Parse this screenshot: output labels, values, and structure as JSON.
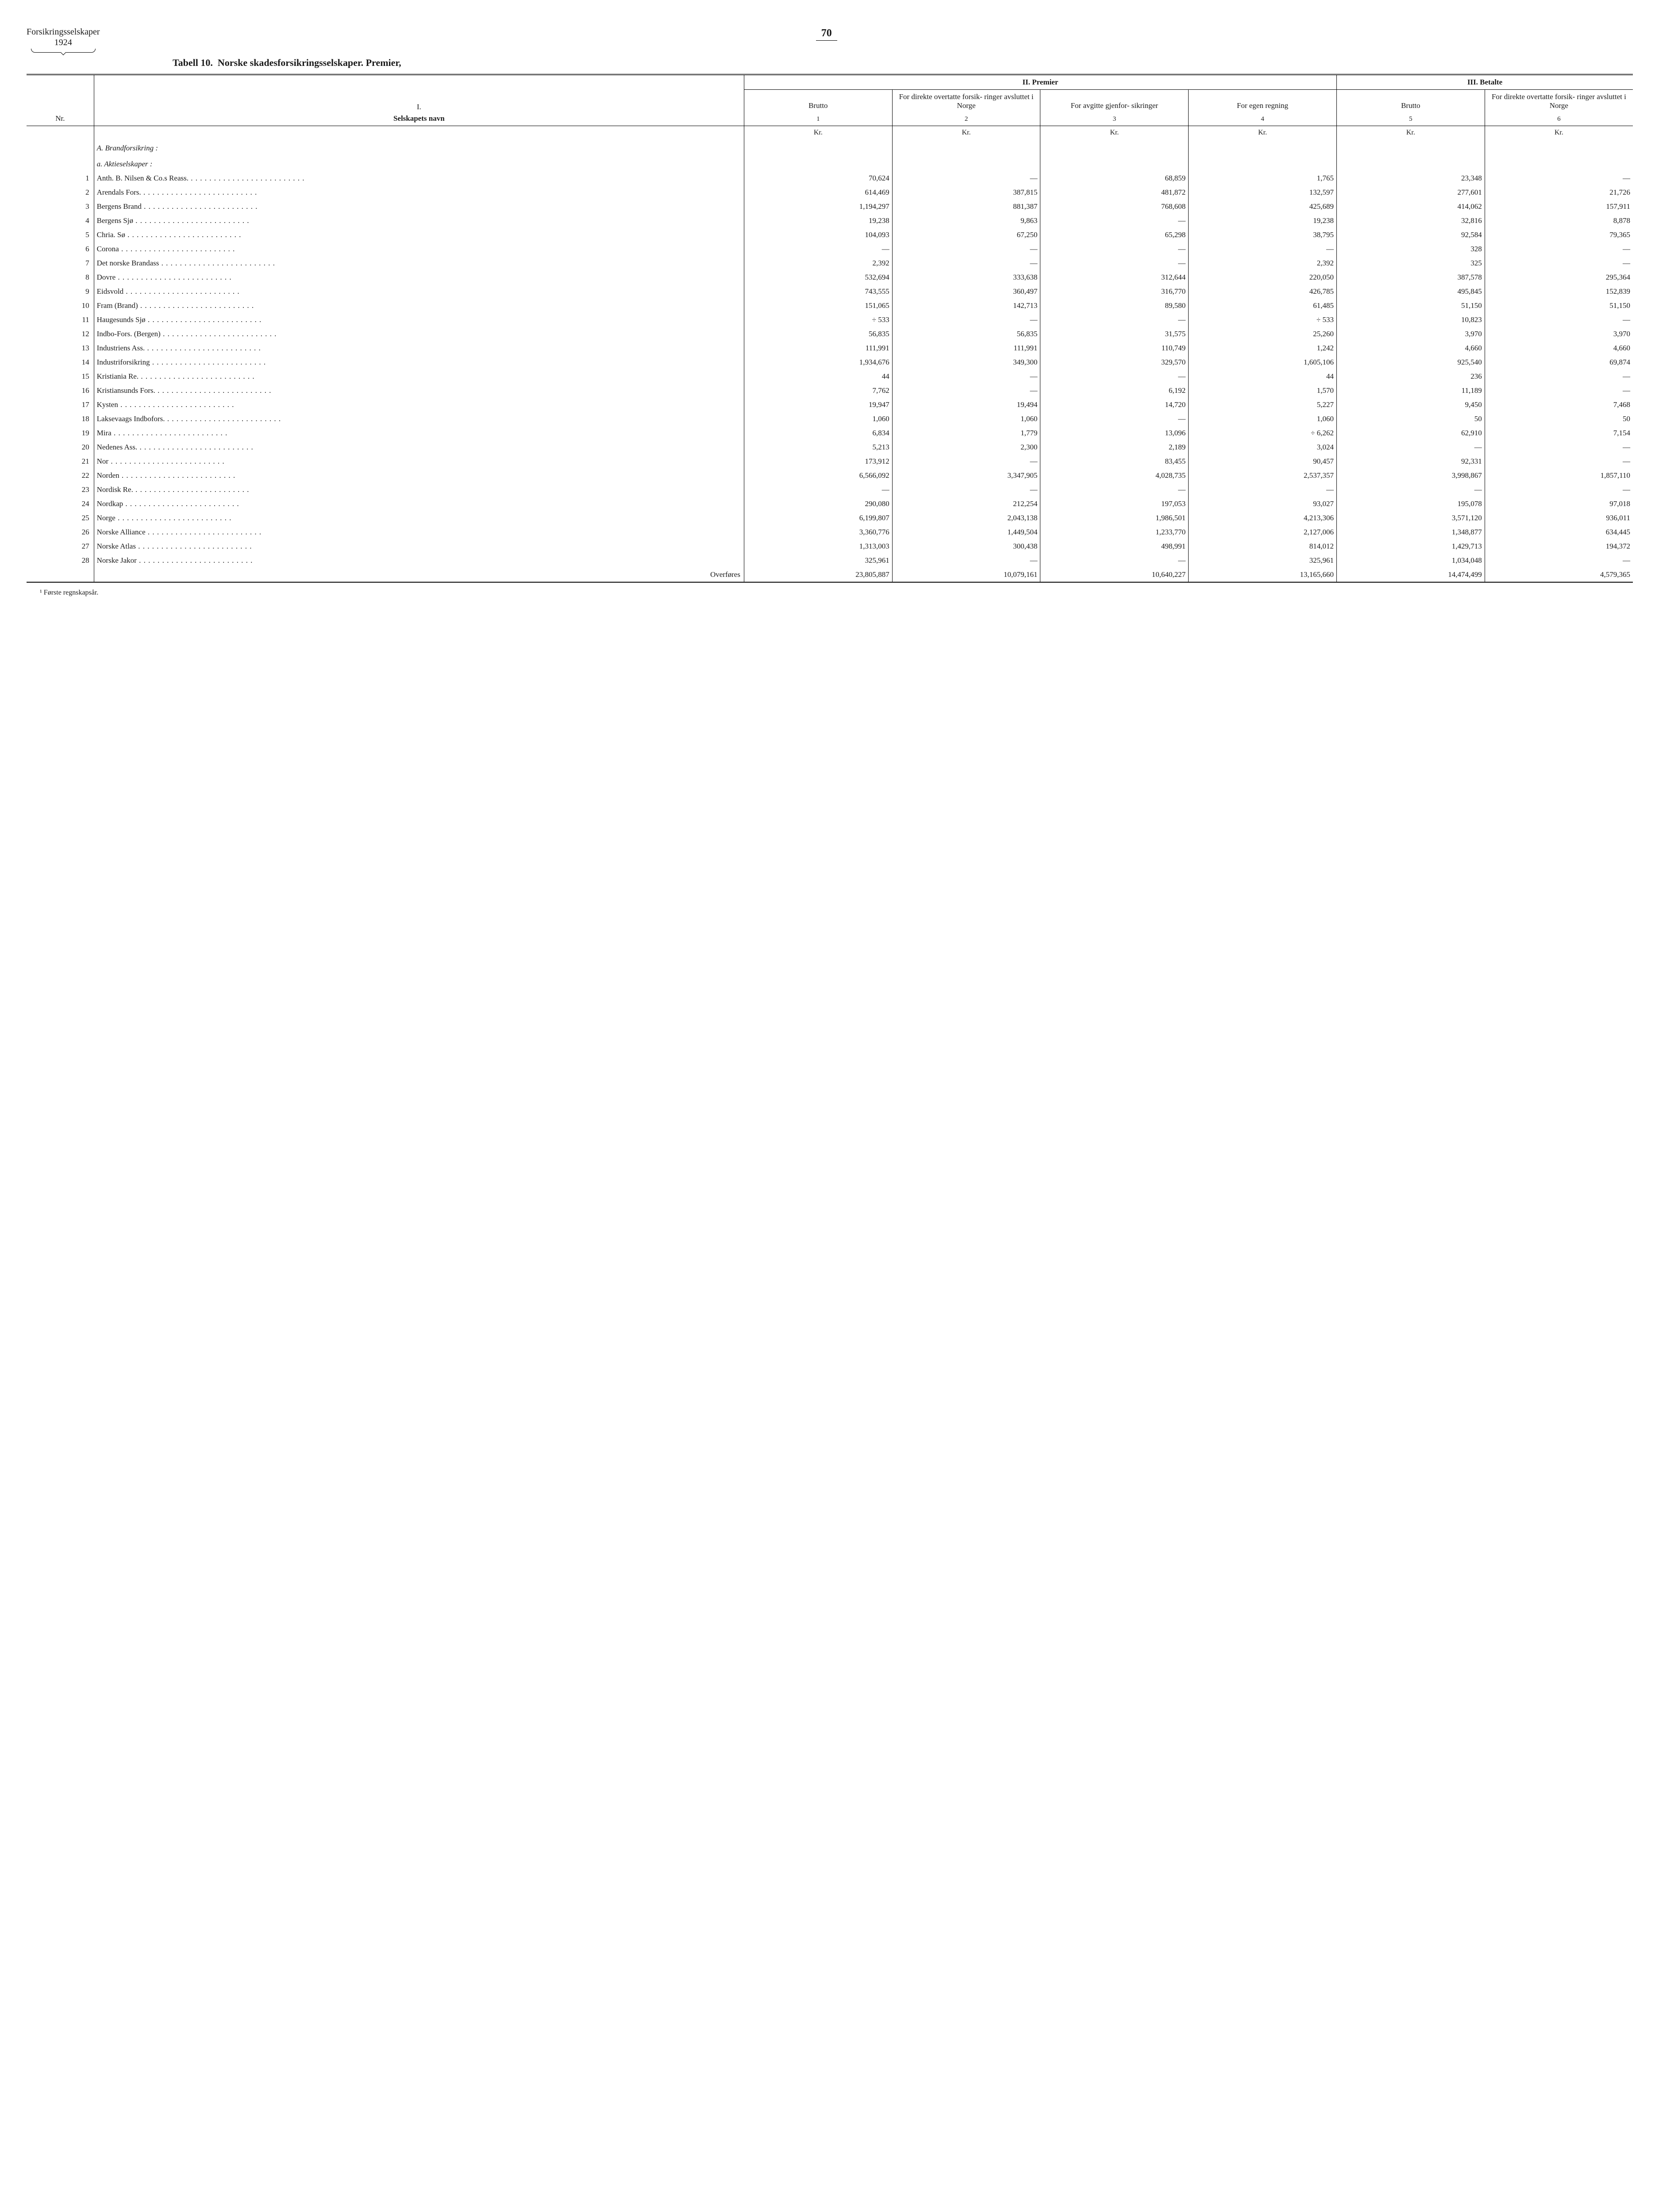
{
  "header": {
    "left_line1": "Forsikringsselskaper",
    "left_line2": "1924",
    "page_number": "70"
  },
  "caption": {
    "prefix": "Tabell 10.",
    "text": "Norske skadesforsikringsselskaper. Premier,"
  },
  "column_groups": {
    "g2": "II.  Premier",
    "g3": "III.  Betalte"
  },
  "columns": {
    "nr": "Nr.",
    "name_top": "I.",
    "name": "Selskapets navn",
    "c1": "Brutto",
    "c2": "For direkte overtatte forsik- ringer avsluttet i Norge",
    "c3": "For avgitte gjenfor- sikringer",
    "c4": "For egen regning",
    "c5": "Brutto",
    "c6": "For direkte overtatte forsik- ringer avsluttet i Norge",
    "n1": "1",
    "n2": "2",
    "n3": "3",
    "n4": "4",
    "n5": "5",
    "n6": "6",
    "kr": "Kr."
  },
  "section": {
    "A": "A.  Brandforsikring :",
    "a": "a.  Aktieselskaper :"
  },
  "rows": [
    {
      "nr": "1",
      "name": "Anth. B. Nilsen & Co.s Reass.",
      "c1": "70,624",
      "c2": "—",
      "c3": "68,859",
      "c4": "1,765",
      "c5": "23,348",
      "c6": "—"
    },
    {
      "nr": "2",
      "name": "Arendals Fors.",
      "c1": "614,469",
      "c2": "387,815",
      "c3": "481,872",
      "c4": "132,597",
      "c5": "277,601",
      "c6": "21,726"
    },
    {
      "nr": "3",
      "name": "Bergens Brand",
      "c1": "1,194,297",
      "c2": "881,387",
      "c3": "768,608",
      "c4": "425,689",
      "c5": "414,062",
      "c6": "157,911"
    },
    {
      "nr": "4",
      "name": "Bergens Sjø",
      "c1": "19,238",
      "c2": "9,863",
      "c3": "—",
      "c4": "19,238",
      "c5": "32,816",
      "c6": "8,878"
    },
    {
      "nr": "5",
      "name": "Chria. Sø",
      "c1": "104,093",
      "c2": "67,250",
      "c3": "65,298",
      "c4": "38,795",
      "c5": "92,584",
      "c6": "79,365"
    },
    {
      "nr": "6",
      "name": "Corona",
      "c1": "—",
      "c2": "—",
      "c3": "—",
      "c4": "—",
      "c5": "328",
      "c6": "—"
    },
    {
      "nr": "7",
      "name": "Det norske Brandass",
      "c1": "2,392",
      "c2": "—",
      "c3": "—",
      "c4": "2,392",
      "c5": "325",
      "c6": "—"
    },
    {
      "nr": "8",
      "name": "Dovre",
      "c1": "532,694",
      "c2": "333,638",
      "c3": "312,644",
      "c4": "220,050",
      "c5": "387,578",
      "c6": "295,364"
    },
    {
      "nr": "9",
      "name": "Eidsvold",
      "c1": "743,555",
      "c2": "360,497",
      "c3": "316,770",
      "c4": "426,785",
      "c5": "495,845",
      "c6": "152,839"
    },
    {
      "nr": "10",
      "name": "Fram (Brand)",
      "c1": "151,065",
      "c2": "142,713",
      "c3": "89,580",
      "c4": "61,485",
      "c5": "51,150",
      "c6": "51,150"
    },
    {
      "nr": "11",
      "name": "Haugesunds Sjø",
      "c1": "÷      533",
      "c2": "—",
      "c3": "—",
      "c4": "÷      533",
      "c5": "10,823",
      "c6": "—"
    },
    {
      "nr": "12",
      "name": "Indbo-Fors. (Bergen)",
      "c1": "56,835",
      "c2": "56,835",
      "c3": "31,575",
      "c4": "25,260",
      "c5": "3,970",
      "c6": "3,970"
    },
    {
      "nr": "13",
      "name": "Industriens Ass.",
      "c1": "111,991",
      "c2": "111,991",
      "c3": "110,749",
      "c4": "1,242",
      "c5": "4,660",
      "c6": "4,660"
    },
    {
      "nr": "14",
      "name": "Industriforsikring",
      "c1": "1,934,676",
      "c2": "349,300",
      "c3": "329,570",
      "c4": "1,605,106",
      "c5": "925,540",
      "c6": "69,874"
    },
    {
      "nr": "15",
      "name": "Kristiania Re.",
      "c1": "44",
      "c2": "—",
      "c3": "—",
      "c4": "44",
      "c5": "236",
      "c6": "—"
    },
    {
      "nr": "16",
      "name": "Kristiansunds Fors.",
      "c1": "7,762",
      "c2": "—",
      "c3": "6,192",
      "c4": "1,570",
      "c5": "11,189",
      "c6": "—"
    },
    {
      "nr": "17",
      "name": "Kysten",
      "c1": "19,947",
      "c2": "19,494",
      "c3": "14,720",
      "c4": "5,227",
      "c5": "9,450",
      "c6": "7,468"
    },
    {
      "nr": "18",
      "name": "Laksevaags Indbofors.",
      "c1": "1,060",
      "c2": "1,060",
      "c3": "—",
      "c4": "1,060",
      "c5": "50",
      "c6": "50"
    },
    {
      "nr": "19",
      "name": "Mira",
      "c1": "6,834",
      "c2": "1,779",
      "c3": "13,096",
      "c4": "÷    6,262",
      "c5": "62,910",
      "c6": "7,154"
    },
    {
      "nr": "20",
      "name": "Nedenes Ass.",
      "c1": "5,213",
      "c2": "2,300",
      "c3": "2,189",
      "c4": "3,024",
      "c5": "—",
      "c6": "—"
    },
    {
      "nr": "21",
      "name": "Nor",
      "c1": "173,912",
      "c2": "—",
      "c3": "83,455",
      "c4": "90,457",
      "c5": "92,331",
      "c6": "—"
    },
    {
      "nr": "22",
      "name": "Norden",
      "c1": "6,566,092",
      "c2": "3,347,905",
      "c3": "4,028,735",
      "c4": "2,537,357",
      "c5": "3,998,867",
      "c6": "1,857,110"
    },
    {
      "nr": "23",
      "name": "Nordisk Re.",
      "c1": "—",
      "c2": "—",
      "c3": "—",
      "c4": "—",
      "c5": "—",
      "c6": "—"
    },
    {
      "nr": "24",
      "name": "Nordkap",
      "c1": "290,080",
      "c2": "212,254",
      "c3": "197,053",
      "c4": "93,027",
      "c5": "195,078",
      "c6": "97,018"
    },
    {
      "nr": "25",
      "name": "Norge",
      "c1": "6,199,807",
      "c2": "2,043,138",
      "c3": "1,986,501",
      "c4": "4,213,306",
      "c5": "3,571,120",
      "c6": "936,011"
    },
    {
      "nr": "26",
      "name": "Norske Alliance",
      "c1": "3,360,776",
      "c2": "1,449,504",
      "c3": "1,233,770",
      "c4": "2,127,006",
      "c5": "1,348,877",
      "c6": "634,445"
    },
    {
      "nr": "27",
      "name": "Norske Atlas",
      "c1": "1,313,003",
      "c2": "300,438",
      "c3": "498,991",
      "c4": "814,012",
      "c5": "1,429,713",
      "c6": "194,372"
    },
    {
      "nr": "28",
      "name": "Norske Jakor",
      "c1": "325,961",
      "c2": "—",
      "c3": "—",
      "c4": "325,961",
      "c5": "1,034,048",
      "c6": "—"
    }
  ],
  "carry": {
    "label": "Overføres",
    "c1": "23,805,887",
    "c2": "10,079,161",
    "c3": "10,640,227",
    "c4": "13,165,660",
    "c5": "14,474,499",
    "c6": "4,579,365"
  },
  "footnote": "¹ Første regnskapsår."
}
